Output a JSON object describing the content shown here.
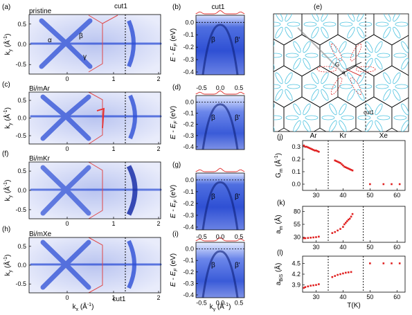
{
  "panels": {
    "a": {
      "letter": "(a)",
      "title": "pristine",
      "cut_label": "cut1",
      "alpha": "α",
      "beta": "β",
      "gamma": "γ"
    },
    "b": {
      "letter": "(b)",
      "title": "cut1",
      "beta": "β",
      "beta_prime": "β'"
    },
    "c": {
      "letter": "(c)",
      "title": "Bi/mAr"
    },
    "d": {
      "letter": "(d)",
      "beta": "β",
      "beta_prime": "β'"
    },
    "e": {
      "letter": "(e)",
      "cut_label": "cut1",
      "g_label": "G",
      "a_label": "a"
    },
    "f": {
      "letter": "(f)",
      "title": "Bi/mKr"
    },
    "g": {
      "letter": "(g)",
      "beta": "β",
      "beta_prime": "β'"
    },
    "h": {
      "letter": "(h)",
      "title": "Bi/mXe",
      "cut_label": "cut1"
    },
    "i": {
      "letter": "(i)",
      "beta": "β",
      "beta_prime": "β'"
    },
    "j": {
      "letter": "(j)"
    },
    "k": {
      "letter": "(k)"
    },
    "l": {
      "letter": "(l)"
    }
  },
  "axes": {
    "ky_label": "k",
    "ky_sub": "y",
    "ky_unit": " (Å",
    "ky_unit_end": ")",
    "kx_label": "k",
    "kx_sub": "x",
    "kx_unit": " (Å",
    "kx_unit_end": ")",
    "inv": "-1",
    "energy_label": "E - E",
    "energy_sub": "F",
    "energy_unit": " (eV)",
    "ky_bottom_label": "k",
    "ky_bottom_sub": "y",
    "t_label": "T(K)",
    "gm_label": "G",
    "gm_sub": "m",
    "gm_unit": " (Å",
    "am_label": "a",
    "am_sub": "m",
    "am_unit": " (Å)",
    "abis_label": "a",
    "abis_sub": "BiS",
    "abis_unit": " (Å)",
    "map_y_ticks": [
      "0.5",
      "0.0",
      "-0.5"
    ],
    "map_x_ticks": [
      "0",
      "1",
      "2"
    ],
    "energy_ticks": [
      "0.0",
      "-0.1",
      "-0.2",
      "-0.3",
      "-0.4"
    ],
    "cut_x_ticks": [
      "-0.5",
      "0.0",
      "0.5"
    ],
    "t_ticks": [
      "30",
      "40",
      "50",
      "60"
    ],
    "gm_ticks": [
      "0.3",
      "0.2",
      "0.1",
      "0.0"
    ],
    "am_ticks": [
      "80",
      "55",
      "30"
    ],
    "abis_ticks": [
      "4.5",
      "4.2",
      "3.9"
    ]
  },
  "regions": {
    "ar": "Ar",
    "kr": "Kr",
    "xe": "Xe"
  },
  "chart_data": [
    {
      "type": "scatter",
      "panel": "j",
      "xlabel": "T(K)",
      "ylabel": "Gm (Å-1)",
      "xlim": [
        25,
        63
      ],
      "ylim": [
        -0.05,
        0.35
      ],
      "points": [
        [
          25.5,
          0.31
        ],
        [
          26,
          0.3
        ],
        [
          26.5,
          0.3
        ],
        [
          27,
          0.295
        ],
        [
          27.5,
          0.29
        ],
        [
          28,
          0.285
        ],
        [
          28.5,
          0.28
        ],
        [
          29,
          0.275
        ],
        [
          29.5,
          0.27
        ],
        [
          30,
          0.27
        ],
        [
          30.5,
          0.265
        ],
        [
          31,
          0.26
        ],
        [
          37,
          0.19
        ],
        [
          37.5,
          0.185
        ],
        [
          38,
          0.18
        ],
        [
          38.5,
          0.175
        ],
        [
          39,
          0.17
        ],
        [
          39.5,
          0.16
        ],
        [
          40,
          0.15
        ],
        [
          40.5,
          0.14
        ],
        [
          41,
          0.135
        ],
        [
          41.5,
          0.13
        ],
        [
          42,
          0.125
        ],
        [
          42.5,
          0.12
        ],
        [
          43,
          0.115
        ],
        [
          43.5,
          0.11
        ],
        [
          50,
          0.0
        ],
        [
          55,
          0.0
        ],
        [
          58,
          0.0
        ],
        [
          61,
          0.0
        ]
      ]
    },
    {
      "type": "scatter",
      "panel": "k",
      "xlabel": "T(K)",
      "ylabel": "am (Å)",
      "xlim": [
        25,
        63
      ],
      "ylim": [
        20,
        90
      ],
      "points": [
        [
          25.5,
          28
        ],
        [
          26,
          28
        ],
        [
          27,
          28.5
        ],
        [
          28,
          29
        ],
        [
          29,
          29.5
        ],
        [
          30,
          30
        ],
        [
          31,
          31
        ],
        [
          36,
          38
        ],
        [
          37,
          40
        ],
        [
          38,
          43
        ],
        [
          39,
          46
        ],
        [
          40,
          50
        ],
        [
          40.5,
          55
        ],
        [
          41,
          58
        ],
        [
          41.5,
          61
        ],
        [
          42,
          64
        ],
        [
          42.5,
          66
        ],
        [
          43,
          70
        ],
        [
          43.5,
          75
        ]
      ]
    },
    {
      "type": "scatter",
      "panel": "l",
      "xlabel": "T(K)",
      "ylabel": "aBiS (Å)",
      "xlim": [
        25,
        63
      ],
      "ylim": [
        3.7,
        4.7
      ],
      "points": [
        [
          25.5,
          3.82
        ],
        [
          26,
          3.84
        ],
        [
          27,
          3.86
        ],
        [
          28,
          3.88
        ],
        [
          29,
          3.89
        ],
        [
          30,
          3.9
        ],
        [
          31,
          3.92
        ],
        [
          36,
          4.12
        ],
        [
          37,
          4.15
        ],
        [
          38,
          4.18
        ],
        [
          39,
          4.2
        ],
        [
          40,
          4.22
        ],
        [
          41,
          4.24
        ],
        [
          42,
          4.25
        ],
        [
          43,
          4.26
        ],
        [
          50,
          4.5
        ],
        [
          55,
          4.5
        ],
        [
          58,
          4.5
        ],
        [
          61,
          4.5
        ]
      ]
    }
  ]
}
